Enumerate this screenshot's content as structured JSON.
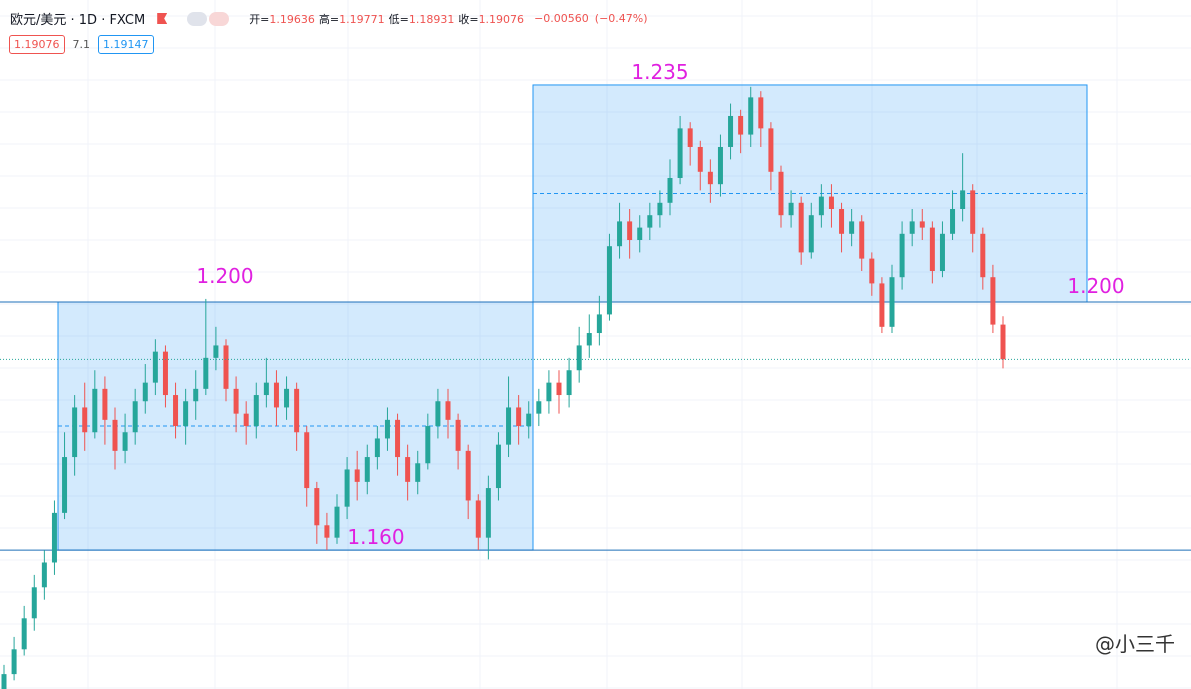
{
  "header": {
    "title": "欧元/美元 · 1D · FXCM",
    "readout": [
      {
        "label": "开=",
        "value": 1.19636
      },
      {
        "label": "高=",
        "value": 1.19771
      },
      {
        "label": "低=",
        "value": 1.18931
      },
      {
        "label": "收=",
        "value": 1.19076
      }
    ],
    "change": {
      "value": -0.0056,
      "label": "−0.00560"
    },
    "change_pct": {
      "value": -0.47,
      "label": "(−0.47%)"
    },
    "bid": 1.19076,
    "spread": 7.1,
    "ask": 1.19147,
    "watermark": "@小三千"
  },
  "chart_data": {
    "type": "candlestick",
    "up_color": "#26a69a",
    "down_color": "#ef5350",
    "ylim": [
      1.1376,
      1.2487
    ],
    "open": [
      1.137,
      1.14,
      1.144,
      1.149,
      1.154,
      1.158,
      1.166,
      1.175,
      1.183,
      1.179,
      1.186,
      1.181,
      1.176,
      1.179,
      1.184,
      1.187,
      1.192,
      1.185,
      1.18,
      1.184,
      1.186,
      1.191,
      1.193,
      1.186,
      1.182,
      1.18,
      1.185,
      1.187,
      1.183,
      1.186,
      1.179,
      1.17,
      1.164,
      1.162,
      1.167,
      1.173,
      1.171,
      1.175,
      1.178,
      1.181,
      1.175,
      1.171,
      1.174,
      1.18,
      1.184,
      1.181,
      1.176,
      1.168,
      1.162,
      1.17,
      1.177,
      1.183,
      1.18,
      1.182,
      1.184,
      1.187,
      1.185,
      1.189,
      1.193,
      1.195,
      1.198,
      1.209,
      1.213,
      1.21,
      1.212,
      1.214,
      1.216,
      1.22,
      1.228,
      1.225,
      1.221,
      1.219,
      1.225,
      1.23,
      1.227,
      1.233,
      1.228,
      1.221,
      1.214,
      1.216,
      1.208,
      1.214,
      1.217,
      1.215,
      1.211,
      1.213,
      1.207,
      1.203,
      1.196,
      1.204,
      1.211,
      1.213,
      1.212,
      1.205,
      1.211,
      1.215,
      1.218,
      1.211,
      1.204,
      1.19636
    ],
    "high": [
      1.1415,
      1.146,
      1.151,
      1.156,
      1.16,
      1.168,
      1.179,
      1.185,
      1.187,
      1.189,
      1.188,
      1.183,
      1.182,
      1.186,
      1.19,
      1.194,
      1.193,
      1.187,
      1.186,
      1.189,
      1.2005,
      1.196,
      1.194,
      1.188,
      1.184,
      1.187,
      1.191,
      1.189,
      1.188,
      1.187,
      1.18,
      1.171,
      1.166,
      1.169,
      1.175,
      1.176,
      1.177,
      1.18,
      1.183,
      1.182,
      1.177,
      1.176,
      1.182,
      1.186,
      1.186,
      1.182,
      1.177,
      1.169,
      1.172,
      1.179,
      1.188,
      1.185,
      1.184,
      1.186,
      1.189,
      1.189,
      1.191,
      1.196,
      1.198,
      1.201,
      1.211,
      1.216,
      1.215,
      1.214,
      1.216,
      1.218,
      1.223,
      1.23,
      1.229,
      1.226,
      1.223,
      1.227,
      1.232,
      1.231,
      1.2347,
      1.234,
      1.229,
      1.222,
      1.218,
      1.217,
      1.216,
      1.219,
      1.219,
      1.216,
      1.215,
      1.214,
      1.208,
      1.204,
      1.206,
      1.213,
      1.215,
      1.215,
      1.213,
      1.213,
      1.218,
      1.224,
      1.219,
      1.212,
      1.206,
      1.19771
    ],
    "low": [
      1.1365,
      1.139,
      1.143,
      1.147,
      1.152,
      1.156,
      1.165,
      1.172,
      1.176,
      1.178,
      1.177,
      1.173,
      1.174,
      1.177,
      1.182,
      1.185,
      1.183,
      1.178,
      1.177,
      1.181,
      1.185,
      1.189,
      1.184,
      1.179,
      1.177,
      1.178,
      1.183,
      1.18,
      1.181,
      1.176,
      1.167,
      1.161,
      1.16,
      1.161,
      1.165,
      1.168,
      1.169,
      1.173,
      1.176,
      1.172,
      1.168,
      1.169,
      1.173,
      1.178,
      1.178,
      1.173,
      1.165,
      1.16,
      1.1585,
      1.168,
      1.175,
      1.177,
      1.178,
      1.18,
      1.182,
      1.182,
      1.183,
      1.187,
      1.191,
      1.193,
      1.197,
      1.207,
      1.207,
      1.208,
      1.21,
      1.212,
      1.214,
      1.219,
      1.222,
      1.218,
      1.216,
      1.217,
      1.223,
      1.224,
      1.225,
      1.225,
      1.218,
      1.212,
      1.212,
      1.206,
      1.207,
      1.212,
      1.212,
      1.208,
      1.209,
      1.205,
      1.201,
      1.195,
      1.195,
      1.202,
      1.209,
      1.21,
      1.203,
      1.204,
      1.21,
      1.213,
      1.208,
      1.202,
      1.195,
      1.18931
    ],
    "close": [
      1.14,
      1.144,
      1.149,
      1.154,
      1.158,
      1.166,
      1.175,
      1.183,
      1.179,
      1.186,
      1.181,
      1.176,
      1.179,
      1.184,
      1.187,
      1.192,
      1.185,
      1.18,
      1.184,
      1.186,
      1.191,
      1.193,
      1.186,
      1.182,
      1.18,
      1.185,
      1.187,
      1.183,
      1.186,
      1.179,
      1.17,
      1.164,
      1.162,
      1.167,
      1.173,
      1.171,
      1.175,
      1.178,
      1.181,
      1.175,
      1.171,
      1.174,
      1.18,
      1.184,
      1.181,
      1.176,
      1.168,
      1.162,
      1.17,
      1.177,
      1.183,
      1.18,
      1.182,
      1.184,
      1.187,
      1.185,
      1.189,
      1.193,
      1.195,
      1.198,
      1.209,
      1.213,
      1.21,
      1.212,
      1.214,
      1.216,
      1.22,
      1.228,
      1.225,
      1.221,
      1.219,
      1.225,
      1.23,
      1.227,
      1.233,
      1.228,
      1.221,
      1.214,
      1.216,
      1.208,
      1.214,
      1.217,
      1.215,
      1.211,
      1.213,
      1.207,
      1.203,
      1.196,
      1.204,
      1.211,
      1.213,
      1.212,
      1.205,
      1.211,
      1.215,
      1.218,
      1.211,
      1.204,
      1.19636,
      1.19076
    ],
    "levels": [
      {
        "value": 1.235,
        "label": "1.235"
      },
      {
        "value": 1.2,
        "label": "1.200"
      },
      {
        "value": 1.2,
        "label": "1.200"
      },
      {
        "value": 1.16,
        "label": "1.160"
      }
    ],
    "level_color": "#e020e0",
    "zone_color": "#2196f3"
  }
}
